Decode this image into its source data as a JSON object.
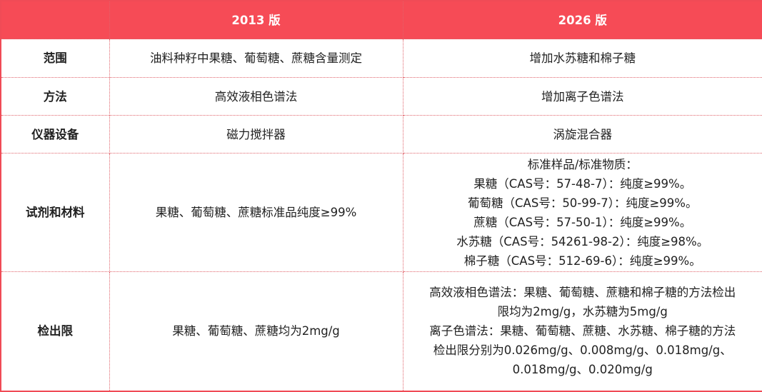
{
  "table": {
    "header": [
      "2013 版",
      "2026 版"
    ],
    "rows": [
      {
        "label": "范围",
        "old": [
          "油料种籽中果糖、葡萄糖、蔗糖含量测定"
        ],
        "new": [
          "增加水苏糖和棉子糖"
        ]
      },
      {
        "label": "方法",
        "old": [
          "高效液相色谱法"
        ],
        "new": [
          "增加离子色谱法"
        ]
      },
      {
        "label": "仪器设备",
        "old": [
          "磁力搅拌器"
        ],
        "new": [
          "涡旋混合器"
        ]
      },
      {
        "label": "试剂和材料",
        "old": [
          "果糖、葡萄糖、蔗糖标准品纯度≥99%"
        ],
        "new": [
          "标准样品/标准物质：",
          "果糖（CAS号：57-48-7）：纯度≥99%。",
          "葡萄糖（CAS号：50-99-7）：纯度≥99%。",
          "蔗糖（CAS号：57-50-1）：纯度≥99%。",
          "水苏糖（CAS号：54261-98-2）：纯度≥98%。",
          "棉子糖（CAS号：512-69-6）：纯度≥99%。"
        ]
      },
      {
        "label": "检出限",
        "old": [
          "果糖、葡萄糖、蔗糖均为2mg/g"
        ],
        "new": [
          "高效液相色谱法：果糖、葡萄糖、蔗糖和棉子糖的方法检出",
          "限均为2mg/g，水苏糖为5mg/g",
          "离子色谱法：果糖、葡萄糖、蔗糖、水苏糖、棉子糖的方法",
          "检出限分别为0.026mg/g、0.008mg/g、0.018mg/g、",
          "0.018mg/g、0.020mg/g"
        ]
      }
    ]
  }
}
